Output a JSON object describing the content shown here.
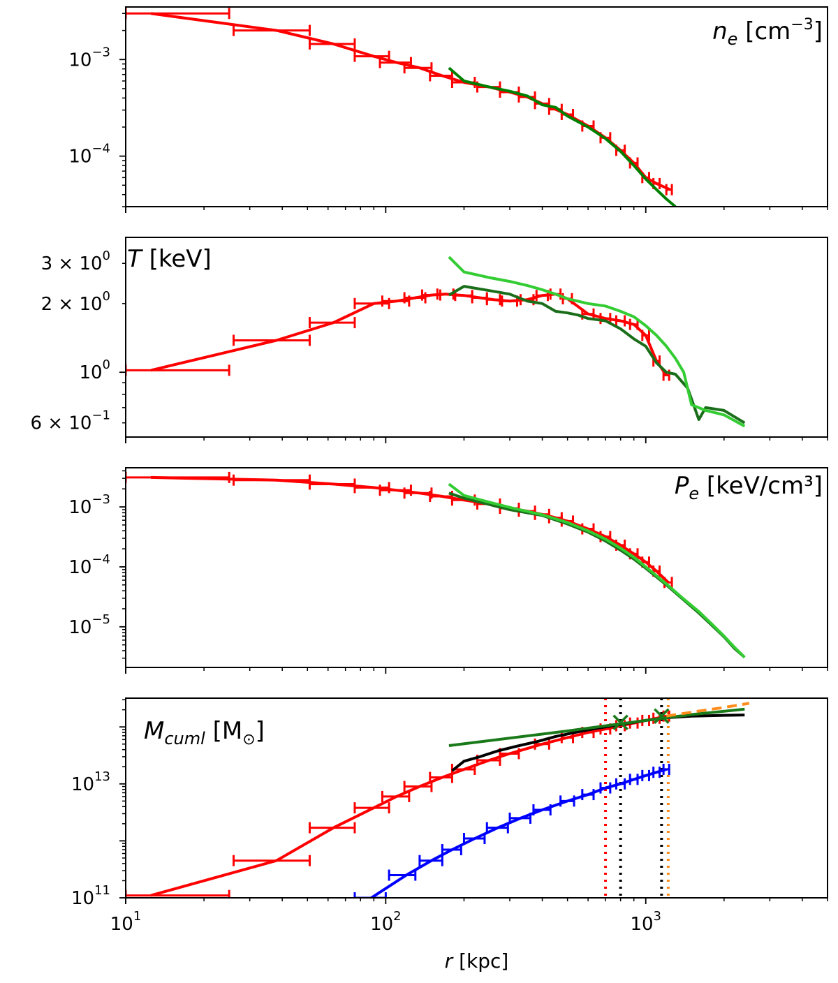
{
  "chart_data": [
    {
      "type": "line",
      "panel": "density",
      "label": "n",
      "label_sub": "e",
      "label_unit": "[cm",
      "label_unit_sup": "−3",
      "label_unit_tail": "]",
      "xscale": "log",
      "yscale": "log",
      "xlim": [
        10,
        5000
      ],
      "ylim": [
        3e-05,
        0.0035
      ],
      "yticks": [
        {
          "value": 0.001,
          "base": "10",
          "exp": "−3"
        },
        {
          "value": 0.0001,
          "base": "10",
          "exp": "−4"
        }
      ],
      "series": [
        {
          "name": "red profile",
          "color": "#ff0000",
          "x": [
            12.5,
            38,
            63,
            90,
            110,
            135,
            165,
            200,
            250,
            300,
            350,
            400,
            450,
            500,
            600,
            700,
            800,
            900,
            1000,
            1100,
            1240
          ],
          "y": [
            0.003,
            0.002,
            0.00145,
            0.00108,
            0.00093,
            0.00082,
            0.00068,
            0.00058,
            0.00052,
            0.00046,
            0.00041,
            0.00035,
            0.000305,
            0.00027,
            0.000205,
            0.000155,
            0.000115,
            8.5e-05,
            6e-05,
            5.2e-05,
            4.5e-05
          ],
          "xerr_lo": [
            10,
            26,
            51,
            76,
            95,
            118,
            148,
            180,
            225,
            275,
            325,
            375,
            425,
            475,
            570,
            670,
            770,
            870,
            970,
            1070,
            1200
          ],
          "xerr_hi": [
            25,
            51,
            76,
            103,
            125,
            150,
            180,
            220,
            275,
            325,
            375,
            425,
            475,
            525,
            630,
            730,
            830,
            930,
            1030,
            1130,
            1260
          ]
        },
        {
          "name": "green profile",
          "color": "#008000",
          "x": [
            175,
            200,
            250,
            300,
            350,
            400,
            450,
            500,
            600,
            700,
            800,
            900,
            1000,
            1100,
            1200,
            1300
          ],
          "y": [
            0.00082,
            0.0006,
            0.00052,
            0.00047,
            0.00042,
            0.00034,
            0.00032,
            0.00026,
            0.0002,
            0.000152,
            0.000112,
            8e-05,
            5.8e-05,
            4.5e-05,
            3.6e-05,
            3e-05
          ]
        }
      ]
    },
    {
      "type": "line",
      "panel": "temperature",
      "label": "T",
      "label_unit": "[keV]",
      "xscale": "log",
      "yscale": "log",
      "xlim": [
        10,
        5000
      ],
      "ylim": [
        0.52,
        3.9
      ],
      "yticks": [
        {
          "value": 3,
          "base": "3 × 10",
          "exp": "0"
        },
        {
          "value": 2,
          "base": "2 × 10",
          "exp": "0"
        },
        {
          "value": 1,
          "base": "10",
          "exp": "0"
        },
        {
          "value": 0.6,
          "base": "6 × 10",
          "exp": "−1"
        }
      ],
      "series": [
        {
          "name": "red profile",
          "color": "#ff0000",
          "x": [
            12.5,
            38,
            63,
            90,
            110,
            130,
            150,
            170,
            200,
            230,
            260,
            300,
            350,
            400,
            450,
            500,
            600,
            700,
            800,
            900,
            1000,
            1100,
            1200
          ],
          "y": [
            1.02,
            1.38,
            1.65,
            2.0,
            2.05,
            2.12,
            2.18,
            2.2,
            2.17,
            2.12,
            2.08,
            2.05,
            2.08,
            2.17,
            2.2,
            2.1,
            1.8,
            1.72,
            1.68,
            1.62,
            1.45,
            1.12,
            0.97
          ],
          "xerr_lo": [
            10,
            26,
            51,
            76,
            97,
            118,
            138,
            158,
            185,
            215,
            245,
            280,
            330,
            380,
            430,
            480,
            570,
            670,
            770,
            870,
            970,
            1070,
            1170
          ],
          "xerr_hi": [
            25,
            51,
            76,
            103,
            123,
            142,
            162,
            182,
            215,
            245,
            275,
            320,
            370,
            420,
            470,
            520,
            630,
            730,
            830,
            930,
            1030,
            1130,
            1230
          ]
        },
        {
          "name": "dark green profile",
          "color": "#1a6e1a",
          "x": [
            175,
            200,
            250,
            300,
            350,
            400,
            450,
            500,
            550,
            600,
            700,
            800,
            900,
            1000,
            1100,
            1200,
            1300,
            1450,
            1600,
            1700,
            2000,
            2400
          ],
          "y": [
            2.18,
            2.38,
            2.28,
            2.2,
            2.05,
            2.0,
            1.85,
            1.82,
            1.78,
            1.72,
            1.68,
            1.55,
            1.4,
            1.3,
            1.1,
            1.0,
            0.98,
            0.85,
            0.62,
            0.7,
            0.68,
            0.6
          ]
        },
        {
          "name": "light green profile",
          "color": "#33cc33",
          "x": [
            175,
            200,
            250,
            300,
            350,
            400,
            450,
            500,
            600,
            700,
            800,
            900,
            1000,
            1100,
            1200,
            1300,
            1400,
            1500,
            1700,
            2000,
            2400
          ],
          "y": [
            3.2,
            2.75,
            2.6,
            2.5,
            2.4,
            2.3,
            2.2,
            2.1,
            2.0,
            1.95,
            1.85,
            1.75,
            1.6,
            1.45,
            1.3,
            1.15,
            1.0,
            0.72,
            0.68,
            0.65,
            0.58
          ]
        }
      ]
    },
    {
      "type": "line",
      "panel": "pressure",
      "label": "P",
      "label_sub": "e",
      "label_unit": "[keV/cm³]",
      "xscale": "log",
      "yscale": "log",
      "xlim": [
        10,
        5000
      ],
      "ylim": 2.1e-06,
      "ylim_hi": 0.0045,
      "yticks": [
        {
          "value": 0.001,
          "base": "10",
          "exp": "−3"
        },
        {
          "value": 0.0001,
          "base": "10",
          "exp": "−4"
        },
        {
          "value": 1e-05,
          "base": "10",
          "exp": "−5"
        }
      ],
      "series": [
        {
          "name": "red profile",
          "color": "#ff0000",
          "x": [
            12.5,
            38,
            63,
            90,
            110,
            135,
            165,
            200,
            250,
            300,
            350,
            400,
            450,
            500,
            600,
            700,
            800,
            900,
            1000,
            1100,
            1220
          ],
          "y": [
            0.0031,
            0.0028,
            0.0024,
            0.0021,
            0.0019,
            0.0017,
            0.0015,
            0.0013,
            0.00112,
            0.00095,
            0.00085,
            0.00075,
            0.00066,
            0.00058,
            0.00043,
            0.00032,
            0.00023,
            0.000165,
            0.00012,
            8.5e-05,
            5.5e-05
          ],
          "xerr_lo": [
            10,
            26,
            51,
            76,
            95,
            118,
            148,
            180,
            225,
            275,
            325,
            375,
            425,
            475,
            570,
            670,
            770,
            870,
            970,
            1070,
            1180
          ],
          "xerr_hi": [
            25,
            51,
            76,
            103,
            125,
            150,
            180,
            220,
            275,
            325,
            375,
            425,
            475,
            525,
            630,
            730,
            830,
            930,
            1030,
            1130,
            1260
          ]
        },
        {
          "name": "dark green profile",
          "color": "#1a6e1a",
          "x": [
            175,
            200,
            250,
            300,
            400,
            500,
            600,
            700,
            800,
            900,
            1000,
            1200,
            1400,
            1600,
            1800,
            2000,
            2200,
            2400
          ],
          "y": [
            0.0017,
            0.0014,
            0.0011,
            0.0009,
            0.00072,
            0.00052,
            0.00038,
            0.00027,
            0.00019,
            0.000135,
            9.5e-05,
            5e-05,
            2.8e-05,
            1.7e-05,
            1.05e-05,
            6.8e-06,
            4.3e-06,
            3.1e-06
          ]
        },
        {
          "name": "light green profile",
          "color": "#33cc33",
          "x": [
            175,
            200,
            250,
            300,
            400,
            500,
            600,
            700,
            800,
            900,
            1000,
            1200,
            1400,
            1600,
            1800,
            2000,
            2200,
            2400
          ],
          "y": [
            0.0024,
            0.00155,
            0.0012,
            0.00098,
            0.00074,
            0.00055,
            0.0004,
            0.00029,
            0.000205,
            0.000145,
            0.0001,
            5.2e-05,
            2.9e-05,
            1.8e-05,
            1.1e-05,
            7e-06,
            4.5e-06,
            3.1e-06
          ]
        }
      ]
    },
    {
      "type": "line",
      "panel": "mass",
      "label": "M",
      "label_sub": "cuml",
      "label_unit": "[M",
      "label_unit_sub": "⊙",
      "label_unit_tail": "]",
      "xscale": "log",
      "yscale": "log",
      "xlim": [
        10,
        5000
      ],
      "ylim": [
        100000000000.0,
        320000000000000.0
      ],
      "xticks": [
        {
          "value": 10,
          "base": "10",
          "exp": "1"
        },
        {
          "value": 100,
          "base": "10",
          "exp": "2"
        },
        {
          "value": 1000,
          "base": "10",
          "exp": "3"
        }
      ],
      "yticks": [
        {
          "value": 10000000000000.0,
          "base": "10",
          "exp": "13"
        },
        {
          "value": 100000000000.0,
          "base": "10",
          "exp": "11"
        }
      ],
      "xlabel": "r",
      "xlabel_unit": "[kpc]",
      "series": [
        {
          "name": "total mass",
          "color": "#ff0000",
          "x": [
            12.5,
            38,
            63,
            90,
            110,
            135,
            165,
            200,
            250,
            300,
            400,
            500,
            600,
            700,
            800,
            900,
            1000,
            1100,
            1200
          ],
          "y": [
            110000000000.0,
            450000000000.0,
            1700000000000.0,
            3800000000000.0,
            6000000000000.0,
            9000000000000.0,
            13000000000000.0,
            18000000000000.0,
            26000000000000.0,
            34000000000000.0,
            50000000000000.0,
            65000000000000.0,
            80000000000000.0,
            92000000000000.0,
            105000000000000.0,
            117000000000000.0,
            130000000000000.0,
            142000000000000.0,
            155000000000000.0
          ],
          "xerr_lo": [
            10,
            26,
            51,
            76,
            97,
            118,
            148,
            180,
            225,
            275,
            375,
            475,
            570,
            670,
            770,
            870,
            970,
            1070,
            1170
          ],
          "xerr_hi": [
            25,
            51,
            76,
            103,
            123,
            150,
            180,
            220,
            275,
            325,
            425,
            525,
            630,
            730,
            830,
            930,
            1030,
            1130,
            1230
          ]
        },
        {
          "name": "gas mass",
          "color": "#0000ff",
          "x": [
            88,
            120,
            150,
            180,
            220,
            270,
            330,
            400,
            500,
            600,
            700,
            800,
            900,
            1000,
            1100,
            1200
          ],
          "y": [
            100000000000.0,
            250000000000.0,
            450000000000.0,
            700000000000.0,
            1100000000000.0,
            1700000000000.0,
            2500000000000.0,
            3500000000000.0,
            5000000000000.0,
            6500000000000.0,
            8500000000000.0,
            10000000000000.0,
            12000000000000.0,
            14000000000000.0,
            16000000000000.0,
            18000000000000.0
          ],
          "xerr_lo": [
            76,
            103,
            135,
            165,
            200,
            245,
            300,
            370,
            470,
            570,
            670,
            770,
            870,
            970,
            1070,
            1170
          ],
          "xerr_hi": [
            100,
            130,
            165,
            195,
            240,
            295,
            360,
            430,
            530,
            630,
            730,
            830,
            930,
            1030,
            1130,
            1230
          ]
        },
        {
          "name": "black profile",
          "color": "#000000",
          "x": [
            180,
            200,
            230,
            270,
            320,
            380,
            450,
            550,
            650,
            800,
            1000,
            1200,
            1500,
            2000,
            2400
          ],
          "y": [
            17000000000000.0,
            25000000000000.0,
            30000000000000.0,
            38000000000000.0,
            46000000000000.0,
            55000000000000.0,
            68000000000000.0,
            82000000000000.0,
            95000000000000.0,
            110000000000000.0,
            130000000000000.0,
            145000000000000.0,
            155000000000000.0,
            160000000000000.0,
            162000000000000.0
          ]
        },
        {
          "name": "green fit",
          "color": "#1a7a1a",
          "x": [
            175,
            500,
            1000,
            1500,
            2400
          ],
          "y": [
            47000000000000.0,
            85000000000000.0,
            130000000000000.0,
            165000000000000.0,
            205000000000000.0
          ]
        },
        {
          "name": "orange extrapolation",
          "color": "#ff8c1a",
          "dashed": true,
          "x": [
            1200,
            1600,
            2000,
            2500
          ],
          "y": [
            155000000000000.0,
            190000000000000.0,
            220000000000000.0,
            260000000000000.0
          ]
        }
      ],
      "vlines": [
        {
          "x": 700,
          "color": "#ff0000"
        },
        {
          "x": 800,
          "color": "#000000"
        },
        {
          "x": 1150,
          "color": "#000000"
        },
        {
          "x": 1220,
          "color": "#ff8c1a"
        }
      ],
      "markers": [
        {
          "x": 800,
          "y": 120000000000000.0,
          "color": "#1a7a1a"
        },
        {
          "x": 1150,
          "y": 155000000000000.0,
          "color": "#1a7a1a"
        }
      ]
    }
  ]
}
